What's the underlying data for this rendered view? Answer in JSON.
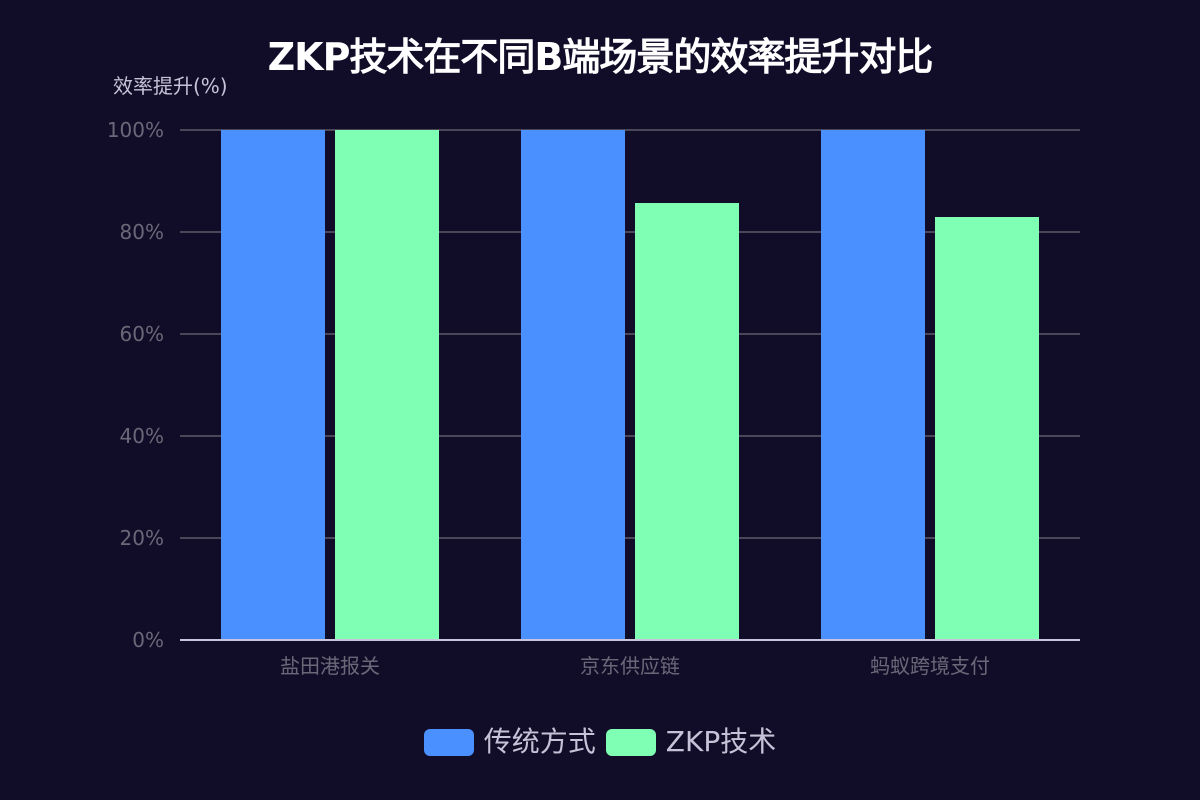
{
  "title": "ZKP技术在不同B端场景的效率提升对比",
  "y_axis_label": "效率提升(%)",
  "y_ticks": [
    "100%",
    "80%",
    "60%",
    "40%",
    "20%",
    "0%"
  ],
  "categories": [
    "盐田港报关",
    "京东供应链",
    "蚂蚁跨境支付"
  ],
  "legend": [
    {
      "label": "传统方式",
      "color": "#4a90ff"
    },
    {
      "label": "ZKP技术",
      "color": "#7fffb3"
    }
  ],
  "chart_data": {
    "type": "bar",
    "title": "ZKP技术在不同B端场景的效率提升对比",
    "xlabel": "",
    "ylabel": "效率提升(%)",
    "categories": [
      "盐田港报关",
      "京东供应链",
      "蚂蚁跨境支付"
    ],
    "series": [
      {
        "name": "传统方式",
        "color": "#4a90ff",
        "values": [
          100,
          100,
          100
        ]
      },
      {
        "name": "ZKP技术",
        "color": "#7fffb3",
        "values": [
          100,
          85.7,
          83.0
        ]
      }
    ],
    "ylim": [
      0,
      100
    ],
    "y_ticks": [
      0,
      20,
      40,
      60,
      80,
      100
    ],
    "y_tick_format": "{v}%",
    "grid": true,
    "legend_position": "bottom"
  }
}
